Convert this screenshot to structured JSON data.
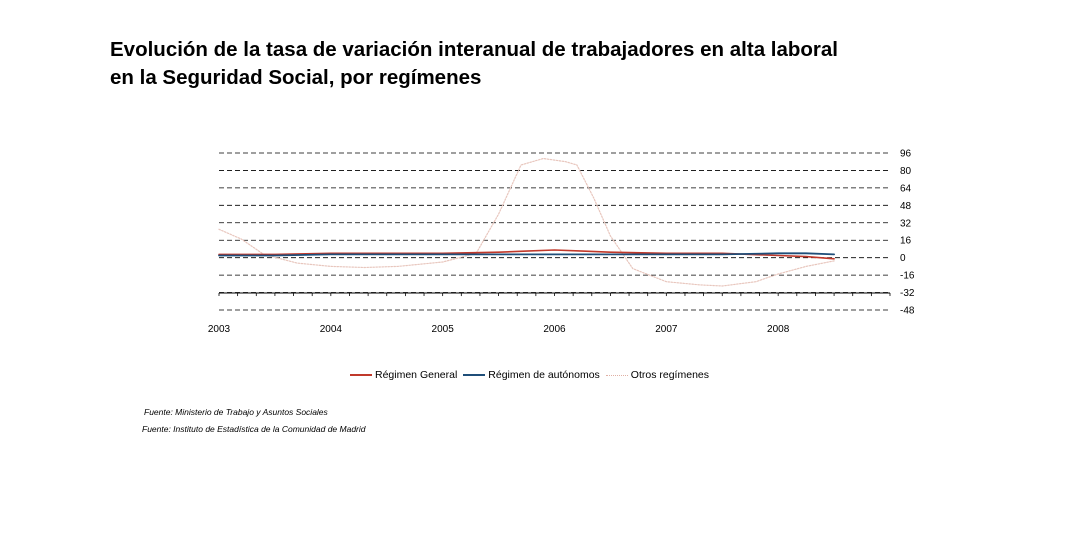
{
  "chart_data": {
    "type": "line",
    "title": [
      "Evolución de la tasa de variación interanual de trabajadores en alta laboral",
      "en la Seguridad Social, por  regímenes"
    ],
    "ylim": [
      -48,
      96
    ],
    "yticks": [
      96,
      80,
      64,
      48,
      32,
      16,
      0,
      -16,
      -32,
      -48
    ],
    "xlim": [
      2003,
      2009
    ],
    "xticks": [
      2003,
      2004,
      2005,
      2006,
      2007,
      2008
    ],
    "grid": "horizontal-dashed",
    "legend_position": "bottom",
    "series": [
      {
        "name": "Régimen General",
        "color": "#c0392b",
        "points": [
          [
            2003,
            3
          ],
          [
            2003.5,
            3
          ],
          [
            2004,
            4
          ],
          [
            2004.5,
            4
          ],
          [
            2005,
            4
          ],
          [
            2005.5,
            5
          ],
          [
            2005.75,
            6
          ],
          [
            2006,
            7
          ],
          [
            2006.25,
            6
          ],
          [
            2006.5,
            5
          ],
          [
            2007,
            4
          ],
          [
            2007.5,
            4
          ],
          [
            2007.75,
            3
          ],
          [
            2008,
            2
          ],
          [
            2008.25,
            1
          ],
          [
            2008.5,
            -1
          ]
        ]
      },
      {
        "name": "Régimen de autónomos",
        "color": "#1f4e79",
        "points": [
          [
            2003,
            2
          ],
          [
            2003.5,
            2
          ],
          [
            2004,
            3
          ],
          [
            2004.5,
            3
          ],
          [
            2005,
            3
          ],
          [
            2005.5,
            3
          ],
          [
            2006,
            3
          ],
          [
            2006.5,
            3
          ],
          [
            2007,
            3
          ],
          [
            2007.5,
            3
          ],
          [
            2008,
            4
          ],
          [
            2008.25,
            4
          ],
          [
            2008.5,
            3
          ]
        ]
      },
      {
        "name": "Otros regímenes",
        "color": "#e8c6bd",
        "points": [
          [
            2003,
            26
          ],
          [
            2003.2,
            17
          ],
          [
            2003.4,
            3
          ],
          [
            2003.7,
            -5
          ],
          [
            2004,
            -8
          ],
          [
            2004.3,
            -9
          ],
          [
            2004.6,
            -8
          ],
          [
            2005,
            -4
          ],
          [
            2005.3,
            4
          ],
          [
            2005.5,
            40
          ],
          [
            2005.7,
            85
          ],
          [
            2005.9,
            91
          ],
          [
            2006.1,
            88
          ],
          [
            2006.2,
            85
          ],
          [
            2006.35,
            55
          ],
          [
            2006.5,
            20
          ],
          [
            2006.7,
            -10
          ],
          [
            2007,
            -22
          ],
          [
            2007.3,
            -25
          ],
          [
            2007.5,
            -26
          ],
          [
            2007.8,
            -22
          ],
          [
            2008,
            -15
          ],
          [
            2008.25,
            -8
          ],
          [
            2008.5,
            -3
          ]
        ]
      }
    ]
  },
  "sources": [
    "Fuente: Ministerio de Trabajo y Asuntos Sociales",
    "Fuente: Instituto de Estadística de la Comunidad de Madrid"
  ]
}
